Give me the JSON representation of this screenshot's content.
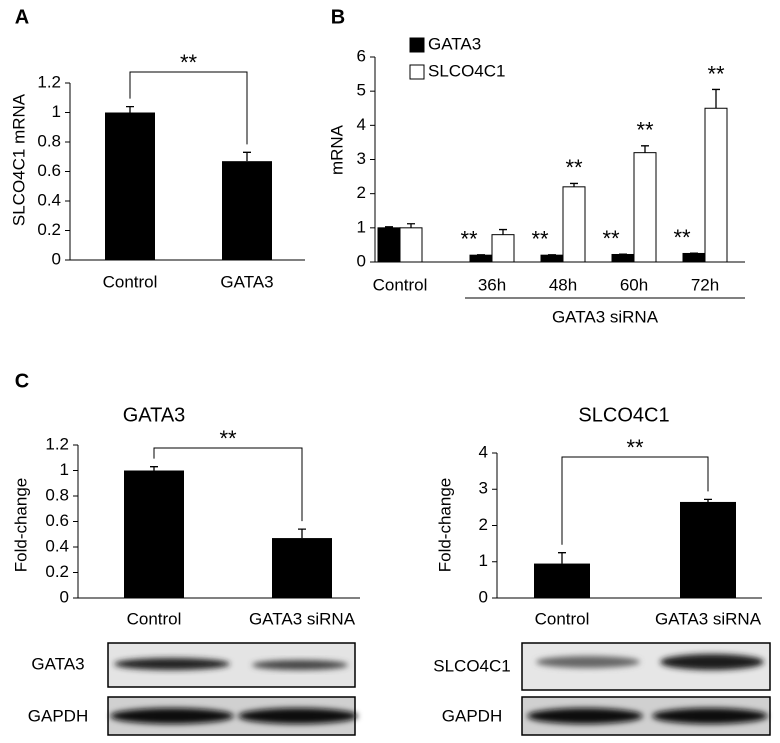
{
  "chart_data": [
    {
      "type": "bar",
      "panel": "A",
      "ylabel": "SLCO4C1 mRNA",
      "categories": [
        "Control",
        "GATA3"
      ],
      "values": [
        1,
        0.67
      ],
      "errors": [
        0.04,
        0.06
      ],
      "color": "#000000",
      "ylim": [
        0,
        1.2
      ],
      "yticks": [
        0,
        0.2,
        0.4,
        0.6,
        0.8,
        1,
        1.2
      ],
      "significance": "**"
    },
    {
      "type": "grouped_bar",
      "panel": "B",
      "ylabel": "mRNA",
      "categories": [
        "Control",
        "36h",
        "48h",
        "60h",
        "72h"
      ],
      "group_label": "GATA3 siRNA",
      "series": [
        {
          "name": "GATA3",
          "color": "#000000",
          "values": [
            1,
            0.2,
            0.2,
            0.22,
            0.25
          ],
          "errors": [
            0.03,
            0.01,
            0.01,
            0.01,
            0.01
          ],
          "significance": [
            null,
            "**",
            "**",
            "**",
            "**"
          ]
        },
        {
          "name": "SLCO4C1",
          "color": "#ffffff",
          "values": [
            1,
            0.8,
            2.2,
            3.2,
            4.5
          ],
          "errors": [
            0.12,
            0.15,
            0.1,
            0.2,
            0.55
          ],
          "significance": [
            null,
            null,
            "**",
            "**",
            "**"
          ]
        }
      ],
      "ylim": [
        0,
        6
      ],
      "yticks": [
        0,
        1,
        2,
        3,
        4,
        5,
        6
      ],
      "legend": "upper left"
    },
    {
      "type": "bar",
      "panel": "C",
      "title": "GATA3",
      "ylabel": "Fold-change",
      "categories": [
        "Control",
        "GATA3 siRNA"
      ],
      "values": [
        1,
        0.47
      ],
      "errors": [
        0.03,
        0.07
      ],
      "color": "#000000",
      "ylim": [
        0,
        1.2
      ],
      "yticks": [
        0,
        0.2,
        0.4,
        0.6,
        0.8,
        1,
        1.2
      ],
      "significance": "**",
      "blot_labels": [
        "GATA3",
        "GAPDH"
      ]
    },
    {
      "type": "bar",
      "title": "SLCO4C1",
      "ylabel": "Fold-change",
      "categories": [
        "Control",
        "GATA3 siRNA"
      ],
      "values": [
        0.95,
        2.65
      ],
      "errors": [
        0.3,
        0.07
      ],
      "color": "#000000",
      "ylim": [
        0,
        4
      ],
      "yticks": [
        0,
        1,
        2,
        3,
        4
      ],
      "significance": "**",
      "blot_labels": [
        "SLCO4C1",
        "GAPDH"
      ]
    }
  ]
}
